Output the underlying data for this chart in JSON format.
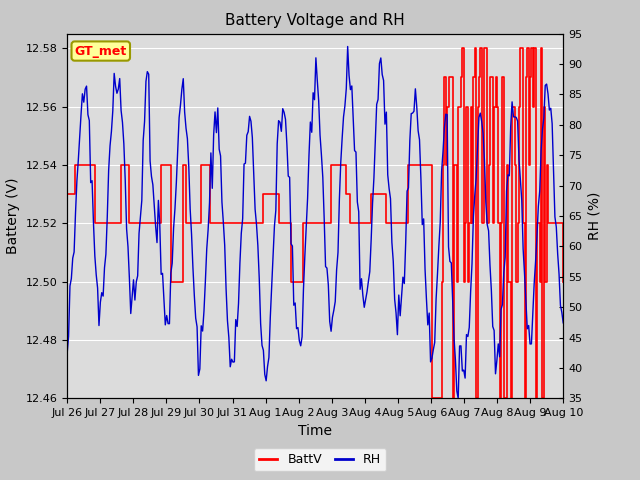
{
  "title": "Battery Voltage and RH",
  "xlabel": "Time",
  "ylabel_left": "Battery (V)",
  "ylabel_right": "RH (%)",
  "label_box": "GT_met",
  "ylim_left": [
    12.46,
    12.585
  ],
  "ylim_right": [
    35,
    95
  ],
  "yticks_left": [
    12.46,
    12.48,
    12.5,
    12.52,
    12.54,
    12.56,
    12.58
  ],
  "yticks_right": [
    35,
    40,
    45,
    50,
    55,
    60,
    65,
    70,
    75,
    80,
    85,
    90,
    95
  ],
  "xtick_labels": [
    "Jul 26",
    "Jul 27",
    "Jul 28",
    "Jul 29",
    "Jul 30",
    "Jul 31",
    "Aug 1",
    "Aug 2",
    "Aug 3",
    "Aug 4",
    "Aug 5",
    "Aug 6",
    "Aug 7",
    "Aug 8",
    "Aug 9",
    "Aug 10"
  ],
  "background_color": "#c8c8c8",
  "plot_bg_color": "#dcdcdc",
  "batt_color": "#ff0000",
  "rh_color": "#0000cc",
  "grid_color": "#ffffff",
  "legend_batt": "BattV",
  "legend_rh": "RH",
  "box_facecolor": "#ffff99",
  "box_edgecolor": "#999900",
  "title_fontsize": 11,
  "axis_label_fontsize": 10,
  "tick_fontsize": 8,
  "legend_fontsize": 9
}
